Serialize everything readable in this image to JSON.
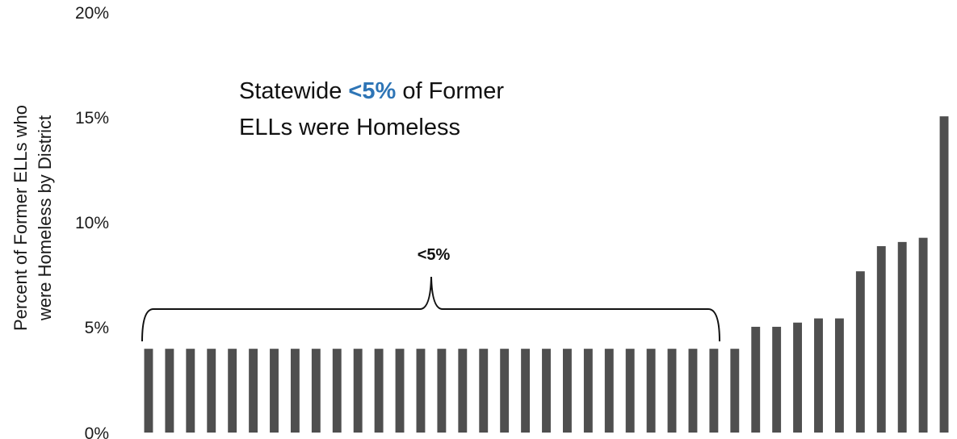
{
  "chart_data": {
    "type": "bar",
    "ylabel_lines": [
      "Percent of Former ELLs who",
      "were Homeless by District"
    ],
    "ylim": [
      0,
      20
    ],
    "yticks": [
      "0%",
      "5%",
      "10%",
      "15%",
      "20%"
    ],
    "grid": false,
    "values": [
      4,
      4,
      4,
      4,
      4,
      4,
      4,
      4,
      4,
      4,
      4,
      4,
      4,
      4,
      4,
      4,
      4,
      4,
      4,
      4,
      4,
      4,
      4,
      4,
      4,
      4,
      4,
      4,
      4,
      5.05,
      5.05,
      5.25,
      5.45,
      5.45,
      7.7,
      8.9,
      9.1,
      9.3,
      15.1
    ],
    "bar_color": "#4f4f4f",
    "annotation": {
      "line1_prefix": "Statewide ",
      "line1_highlight": "<5%",
      "line1_suffix": " of Former",
      "line2": "ELLs were Homeless",
      "highlight_color": "#2e75b6"
    },
    "brace_label": "<5%"
  }
}
